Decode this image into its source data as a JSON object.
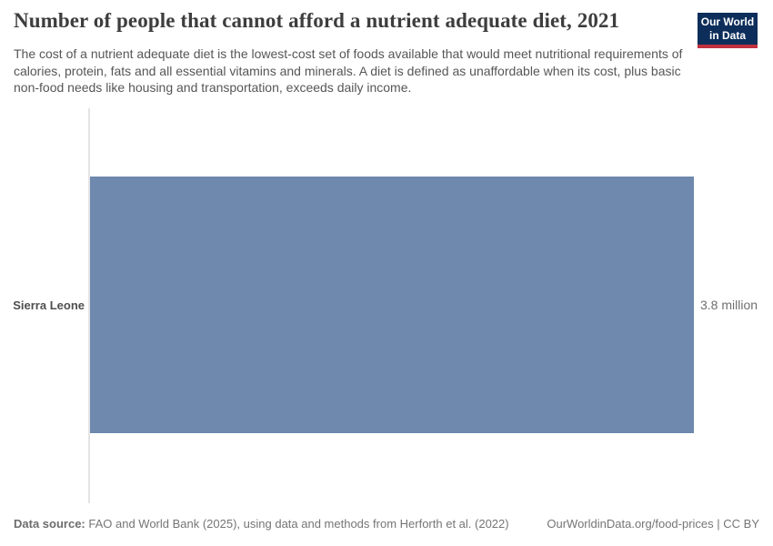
{
  "header": {
    "title": "Number of people that cannot afford a nutrient adequate diet, 2021",
    "subtitle": "The cost of a nutrient adequate diet is the lowest-cost set of foods available that would meet nutritional requirements of calories, protein, fats and all essential vitamins and minerals. A diet is defined as unaffordable when its cost, plus basic non-food needs like housing and transportation, exceeds daily income.",
    "logo": {
      "line1": "Our World",
      "line2": "in Data"
    }
  },
  "chart_data": {
    "type": "bar",
    "orientation": "horizontal",
    "title": "Number of people that cannot afford a nutrient adequate diet, 2021",
    "year": "2021",
    "categories": [
      "Sierra Leone"
    ],
    "values": [
      3800000
    ],
    "value_labels": [
      "3.8 million"
    ],
    "axis_max": 3800000,
    "grid": false,
    "legend": false,
    "bar_color": "#6e88ae"
  },
  "footer": {
    "data_source_label": "Data source:",
    "data_source_text": " FAO and World Bank (2025), using data and methods from Herforth et al. (2022)",
    "attribution": "OurWorldinData.org/food-prices | CC BY"
  },
  "colors": {
    "bar-color": "#6e88ae",
    "logo-bg": "#0d2e5a",
    "logo-stripe": "#c0303f",
    "title-color": "#3d3d3d",
    "subtitle-color": "#565656"
  }
}
